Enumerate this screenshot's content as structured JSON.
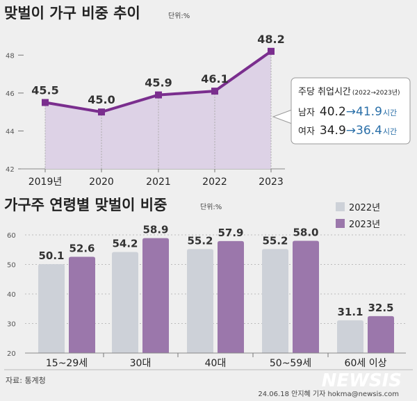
{
  "colors": {
    "line": "#7a2e8e",
    "area": "#ddd2e6",
    "bar_2022": "#cdd1d8",
    "bar_2023": "#9b77ab",
    "highlight": "#2a6fa8"
  },
  "chart_data": [
    {
      "type": "area",
      "title": "맞벌이 가구 비중 추이",
      "unit": "단위:%",
      "x": [
        "2019년",
        "2020",
        "2021",
        "2022",
        "2023"
      ],
      "values": [
        45.5,
        45.0,
        45.9,
        46.1,
        48.2
      ],
      "labels": [
        "45.5",
        "45.0",
        "45.9",
        "46.1",
        "48.2"
      ],
      "ylim": [
        42,
        49
      ],
      "yticks": [
        "42",
        "44",
        "46",
        "48"
      ],
      "grid": false,
      "annotation": {
        "title": "주당 취업시간",
        "period": "(2022→2023년)",
        "rows": [
          {
            "label": "남자",
            "from": "40.2",
            "arrow": "→",
            "to": "41.9",
            "unit": "시간"
          },
          {
            "label": "여자",
            "from": "34.9",
            "arrow": "→",
            "to": "36.4",
            "unit": "시간"
          }
        ]
      }
    },
    {
      "type": "bar",
      "title": "가구주 연령별 맞벌이 비중",
      "unit": "단위:%",
      "categories": [
        "15~29세",
        "30대",
        "40대",
        "50~59세",
        "60세 이상"
      ],
      "series": [
        {
          "name": "2022년",
          "values": [
            50.1,
            54.2,
            55.2,
            55.2,
            31.1
          ],
          "labels": [
            "50.1",
            "54.2",
            "55.2",
            "55.2",
            "31.1"
          ]
        },
        {
          "name": "2023년",
          "values": [
            52.6,
            58.9,
            57.9,
            58.0,
            32.5
          ],
          "labels": [
            "52.6",
            "58.9",
            "57.9",
            "58.0",
            "32.5"
          ]
        }
      ],
      "ylim": [
        20,
        60
      ],
      "yticks": [
        "20",
        "30",
        "40",
        "50",
        "60"
      ],
      "legend": "top-right"
    }
  ],
  "footer": {
    "source": "자료: 통계청",
    "credit": "24.06.18 안지혜 기자 hokma@newsis.com",
    "logo": "NEWSIS"
  }
}
